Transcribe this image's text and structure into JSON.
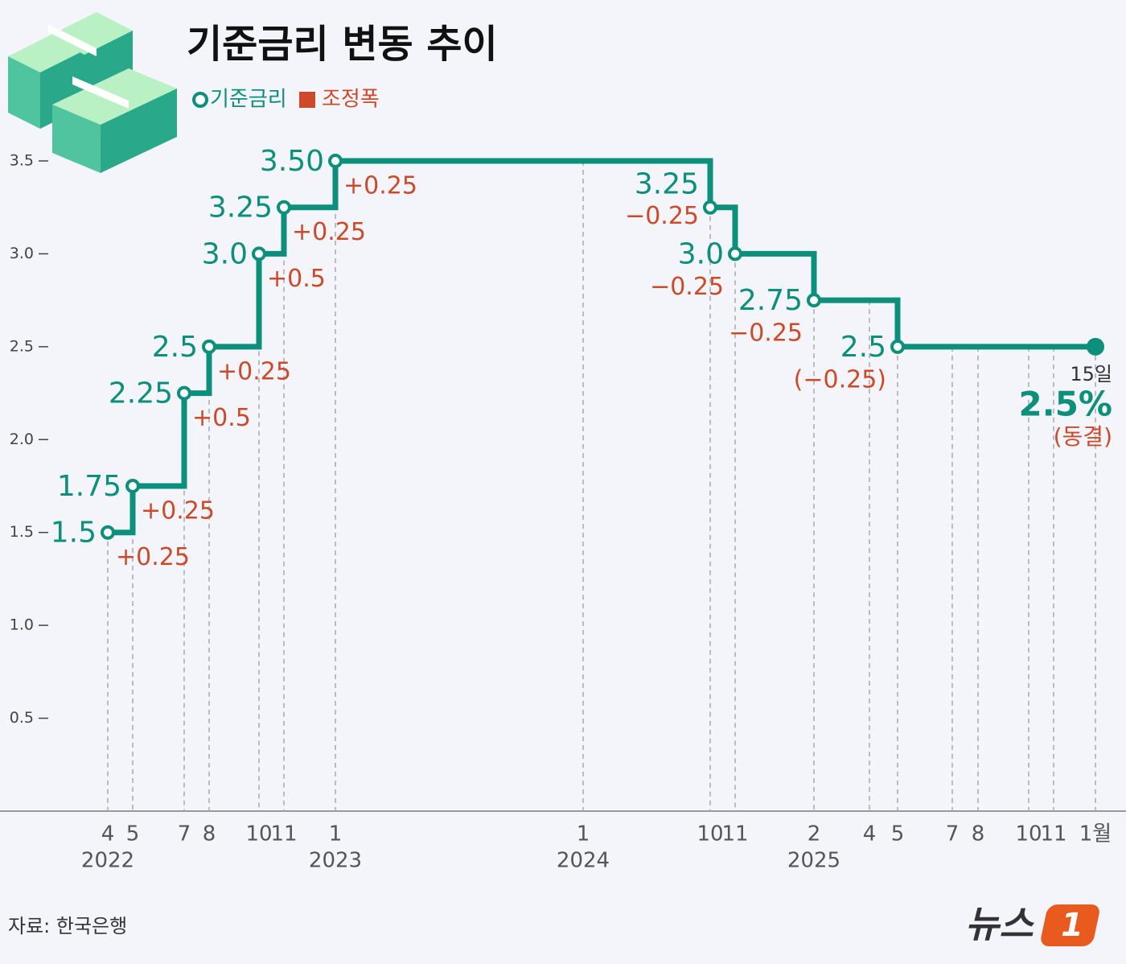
{
  "chart_data": {
    "type": "step",
    "title": "기준금리 변동 추이",
    "categories": [
      "4",
      "5",
      "7",
      "8",
      "10",
      "11",
      "1",
      "1",
      "10",
      "11",
      "2",
      "4",
      "5",
      "7",
      "8",
      "10",
      "11",
      "1월"
    ],
    "year_labels": [
      "2022",
      null,
      null,
      null,
      null,
      null,
      "2023",
      "2024",
      null,
      null,
      "2025",
      null,
      null,
      null,
      null,
      null,
      null,
      null
    ],
    "series": [
      {
        "name": "기준금리",
        "color": "#0c8f7b",
        "values": [
          1.5,
          1.75,
          2.25,
          2.5,
          3,
          3.25,
          3.5,
          3.5,
          3.25,
          3,
          2.75,
          2.75,
          2.5,
          2.5,
          2.5,
          2.5,
          2.5,
          2.5
        ],
        "value_labels": [
          "1.5",
          "1.75",
          "2.25",
          "2.5",
          "3.0",
          "3.25",
          "3.50",
          null,
          "3.25",
          "3.0",
          "2.75",
          null,
          "2.5",
          null,
          null,
          null,
          null,
          "2.5%"
        ]
      },
      {
        "name": "조정폭",
        "color": "#cc4a2a",
        "values": [
          0.25,
          0.25,
          0.5,
          0.25,
          0.5,
          0.25,
          0.25,
          null,
          -0.25,
          -0.25,
          -0.25,
          null,
          -0.25,
          null,
          null,
          null,
          null,
          null
        ],
        "value_labels": [
          "+0.25",
          "+0.25",
          "+0.5",
          "+0.25",
          "+0.5",
          "+0.25",
          "+0.25",
          null,
          "−0.25",
          "−0.25",
          "−0.25",
          null,
          "(−0.25)",
          null,
          null,
          null,
          null,
          null
        ]
      }
    ],
    "annotations": [
      "15일",
      "(동결)"
    ],
    "ylim": [
      0,
      3.5
    ],
    "yticks": [
      0.5,
      {
        "value": 1,
        "label": "1.0"
      },
      1.5,
      {
        "value": 2,
        "label": "2.0"
      },
      2.5,
      {
        "value": 3,
        "label": "3.0"
      },
      3.5
    ],
    "source": "자료: 한국은행",
    "logo": [
      "뉴스",
      "1"
    ]
  }
}
